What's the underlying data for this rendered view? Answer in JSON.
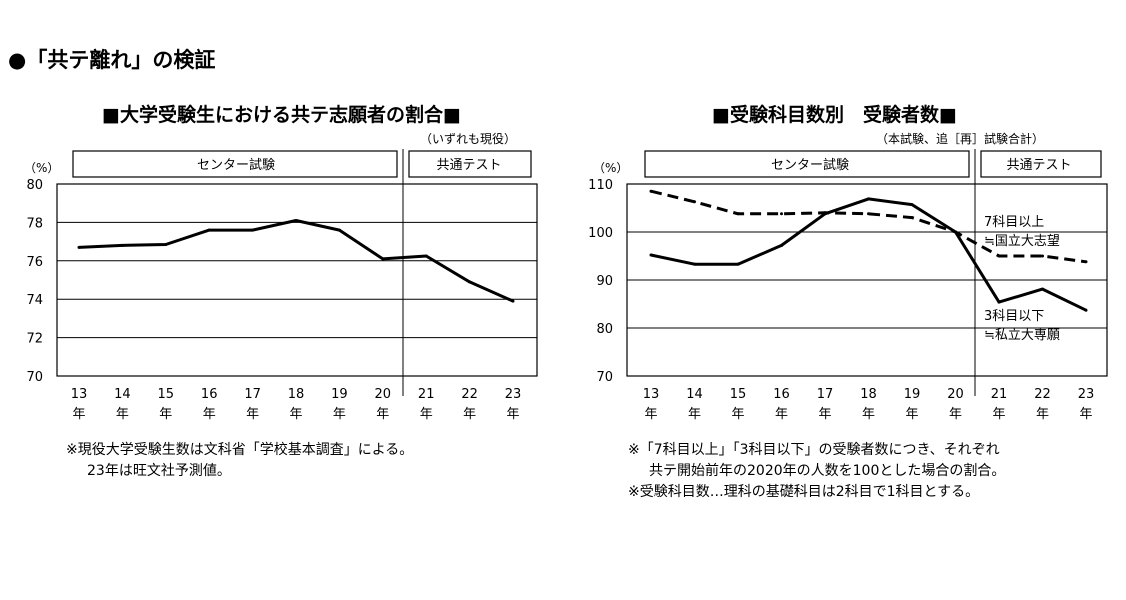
{
  "page": {
    "title": "●「共テ離れ」の検証"
  },
  "chart_data": [
    {
      "type": "line",
      "title": "■大学受験生における共テ志願者の割合■",
      "subtitle": "（いずれも現役）",
      "ylabel": "（%）",
      "ylim": [
        70,
        80
      ],
      "yticks": [
        70,
        72,
        74,
        76,
        78,
        80
      ],
      "categories": [
        "13",
        "14",
        "15",
        "16",
        "17",
        "18",
        "19",
        "20",
        "21",
        "22",
        "23"
      ],
      "year_suffix": "年",
      "grid": true,
      "period_labels": [
        "センター試験",
        "共通テスト"
      ],
      "series": [
        {
          "style": "solid",
          "values": [
            76.7,
            76.8,
            76.85,
            77.6,
            77.6,
            78.1,
            77.6,
            76.1,
            76.25,
            74.9,
            73.9
          ]
        }
      ],
      "notes": [
        "※現役大学受験生数は文科省「学校基本調査」による。",
        "23年は旺文社予測値。"
      ]
    },
    {
      "type": "line",
      "title": "■受験科目数別　受験者数■",
      "subtitle": "（本試験、追［再］試験合計）",
      "ylabel": "（%）",
      "ylim": [
        70,
        110
      ],
      "yticks": [
        70,
        80,
        90,
        100,
        110
      ],
      "categories": [
        "13",
        "14",
        "15",
        "16",
        "17",
        "18",
        "19",
        "20",
        "21",
        "22",
        "23"
      ],
      "year_suffix": "年",
      "grid": true,
      "period_labels": [
        "センター試験",
        "共通テスト"
      ],
      "series": [
        {
          "style": "dashed",
          "label_lines": [
            "7科目以上",
            "≒国立大志望"
          ],
          "values": [
            108.5,
            106.3,
            103.8,
            103.8,
            104.0,
            103.8,
            103.0,
            100.0,
            95.0,
            95.0,
            93.8
          ]
        },
        {
          "style": "solid",
          "label_lines": [
            "3科目以下",
            "≒私立大専願"
          ],
          "values": [
            95.2,
            93.3,
            93.3,
            97.2,
            103.8,
            106.9,
            105.7,
            100.0,
            85.4,
            88.1,
            83.7
          ]
        }
      ],
      "notes": [
        "※「7科目以上」「3科目以下」の受験者数につき、それぞれ",
        "共テ開始前年の2020年の人数を100とした場合の割合。",
        "※受験科目数…理科の基礎科目は2科目で1科目とする。"
      ]
    }
  ]
}
